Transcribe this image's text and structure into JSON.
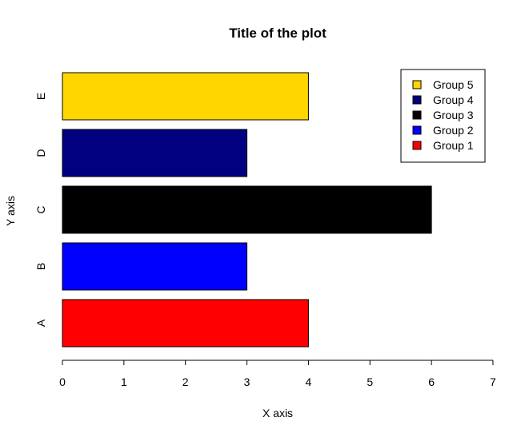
{
  "chart_data": {
    "type": "bar",
    "orientation": "horizontal",
    "title": "Title of the plot",
    "xlabel": "X axis",
    "ylabel": "Y axis",
    "categories": [
      "A",
      "B",
      "C",
      "D",
      "E"
    ],
    "values": [
      4,
      3,
      6,
      3,
      4
    ],
    "bar_colors": [
      "#ff0000",
      "#0000ff",
      "#000000",
      "#000080",
      "#ffd700"
    ],
    "xlim": [
      0,
      7
    ],
    "xticks": [
      0,
      1,
      2,
      3,
      4,
      5,
      6,
      7
    ],
    "grid": false,
    "legend": {
      "placement": "top-right",
      "entries": [
        {
          "label": "Group 5",
          "color": "#ffd700"
        },
        {
          "label": "Group 4",
          "color": "#000080"
        },
        {
          "label": "Group 3",
          "color": "#000000"
        },
        {
          "label": "Group 2",
          "color": "#0000ff"
        },
        {
          "label": "Group 1",
          "color": "#ff0000"
        }
      ]
    }
  }
}
